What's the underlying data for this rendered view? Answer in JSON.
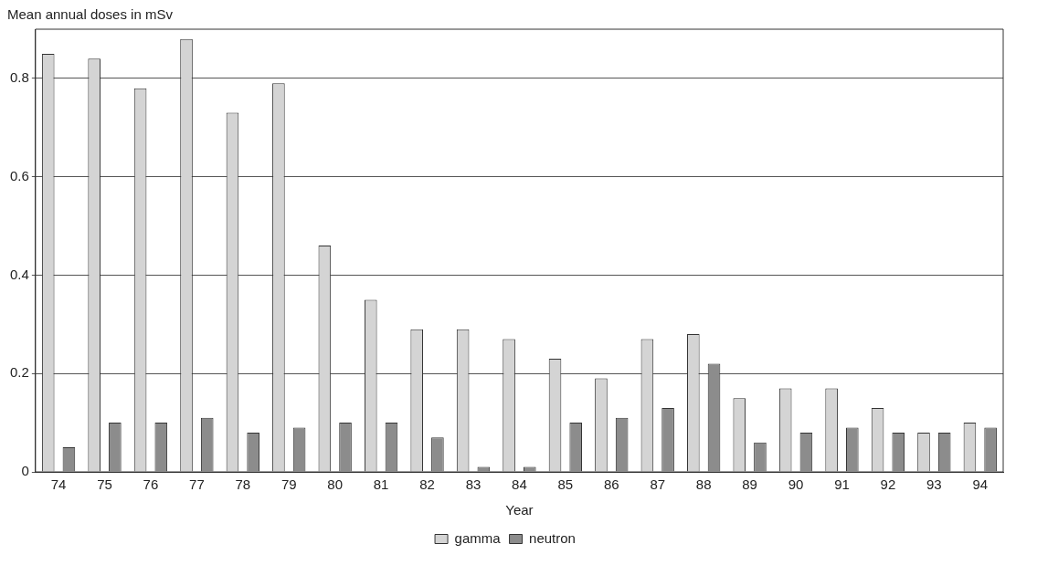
{
  "chart_data": {
    "type": "bar",
    "ylabel": "Mean annual doses in mSv",
    "xlabel": "Year",
    "categories": [
      "74",
      "75",
      "76",
      "77",
      "78",
      "79",
      "80",
      "81",
      "82",
      "83",
      "84",
      "85",
      "86",
      "87",
      "88",
      "89",
      "90",
      "91",
      "92",
      "93",
      "94"
    ],
    "series": [
      {
        "name": "gamma",
        "color": "#d4d4d4",
        "values": [
          0.85,
          0.84,
          0.78,
          0.88,
          0.73,
          0.79,
          0.46,
          0.35,
          0.29,
          0.29,
          0.27,
          0.23,
          0.19,
          0.27,
          0.28,
          0.15,
          0.17,
          0.17,
          0.13,
          0.08,
          0.1
        ]
      },
      {
        "name": "neutron",
        "color": "#8c8c8c",
        "values": [
          0.05,
          0.1,
          0.1,
          0.11,
          0.08,
          0.09,
          0.1,
          0.1,
          0.07,
          0.01,
          0.01,
          0.1,
          0.11,
          0.13,
          0.22,
          0.06,
          0.08,
          0.09,
          0.08,
          0.08,
          0.09
        ]
      }
    ],
    "ylim": [
      0,
      0.9
    ],
    "yticks": [
      0,
      0.2,
      0.4,
      0.6,
      0.8
    ],
    "grid": "y",
    "legend": "bottom"
  }
}
